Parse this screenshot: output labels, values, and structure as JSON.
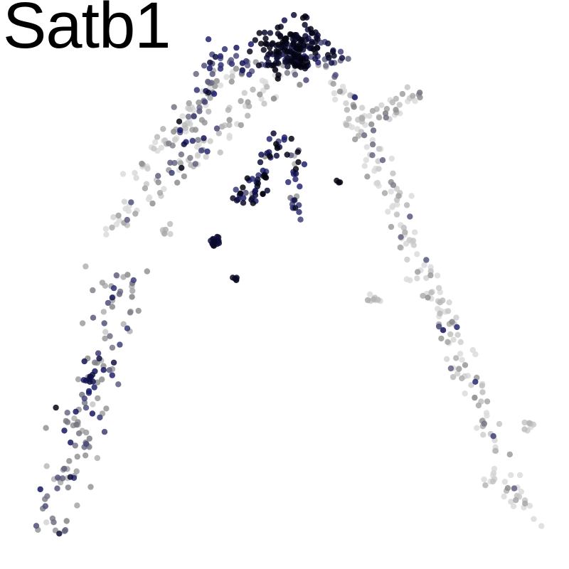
{
  "chart_data": {
    "type": "scatter",
    "title": "Satb1",
    "xlabel": "",
    "ylabel": "",
    "grid": false,
    "legend": "none",
    "colors": {
      "low": "#dcdcdc",
      "mid": "#8c8c8c",
      "high": "#1a1a6e",
      "max": "#050510"
    },
    "xlim": [
      0,
      100
    ],
    "ylim": [
      0,
      100
    ],
    "segments": [
      {
        "name": "left-arm",
        "from": [
          52,
          91
        ],
        "to": [
          18,
          60
        ],
        "n": 90,
        "spread": 1.2,
        "level": 0.05
      },
      {
        "name": "left-arm-upper",
        "from": [
          40,
          90
        ],
        "to": [
          22,
          70
        ],
        "n": 50,
        "spread": 1.0,
        "level": 0.05
      },
      {
        "name": "left-lower",
        "from": [
          20,
          52
        ],
        "to": [
          7,
          5
        ],
        "n": 130,
        "spread": 2.2,
        "level": 0.35
      },
      {
        "name": "right-arm",
        "from": [
          60,
          88
        ],
        "to": [
          70,
          66
        ],
        "n": 60,
        "spread": 1.5,
        "level": 0.05
      },
      {
        "name": "right-spur",
        "from": [
          62,
          80
        ],
        "to": [
          75,
          85
        ],
        "n": 35,
        "spread": 1.0,
        "level": 0.08
      },
      {
        "name": "right-lower",
        "from": [
          70,
          66
        ],
        "to": [
          95,
          7
        ],
        "n": 140,
        "spread": 1.3,
        "level": 0.05
      },
      {
        "name": "top-band",
        "from": [
          34,
          91
        ],
        "to": [
          60,
          91
        ],
        "n": 70,
        "spread": 1.5,
        "level": 0.5
      },
      {
        "name": "inner-branch-1",
        "from": [
          36,
          88
        ],
        "to": [
          29,
          69
        ],
        "n": 40,
        "spread": 1.3,
        "level": 0.4
      },
      {
        "name": "inner-branch-2",
        "from": [
          50,
          78
        ],
        "to": [
          43,
          67
        ],
        "n": 35,
        "spread": 1.0,
        "level": 0.7
      },
      {
        "name": "inner-branch-3",
        "from": [
          52,
          75
        ],
        "to": [
          52,
          62
        ],
        "n": 25,
        "spread": 0.8,
        "level": 0.55
      },
      {
        "name": "inner-branch-4",
        "from": [
          47,
          68
        ],
        "to": [
          41,
          65
        ],
        "n": 20,
        "spread": 0.9,
        "level": 0.75
      }
    ],
    "clusters": [
      {
        "name": "apex",
        "center": [
          51,
          94
        ],
        "n": 150,
        "spread": 2.8,
        "level": 0.93
      },
      {
        "name": "mid-left",
        "center": [
          37,
          58
        ],
        "n": 18,
        "spread": 0.7,
        "level": 0.85
      },
      {
        "name": "mid-dot",
        "center": [
          41,
          51
        ],
        "n": 5,
        "spread": 0.3,
        "level": 0.9
      },
      {
        "name": "lower-left-hot",
        "center": [
          15,
          32
        ],
        "n": 10,
        "spread": 1.5,
        "level": 0.75
      },
      {
        "name": "far-left-dot",
        "center": [
          60,
          69
        ],
        "n": 3,
        "spread": 0.2,
        "level": 1.0
      },
      {
        "name": "scattered-gray",
        "center": [
          28,
          60
        ],
        "n": 6,
        "spread": 0.6,
        "level": 0.1
      },
      {
        "name": "right-small",
        "center": [
          67,
          47
        ],
        "n": 8,
        "spread": 0.6,
        "level": 0.05
      },
      {
        "name": "right-bottom-blob",
        "center": [
          88,
          14
        ],
        "n": 8,
        "spread": 0.8,
        "level": 0.05
      },
      {
        "name": "far-right-blob",
        "center": [
          95,
          24
        ],
        "n": 8,
        "spread": 0.6,
        "level": 0.05
      }
    ]
  }
}
